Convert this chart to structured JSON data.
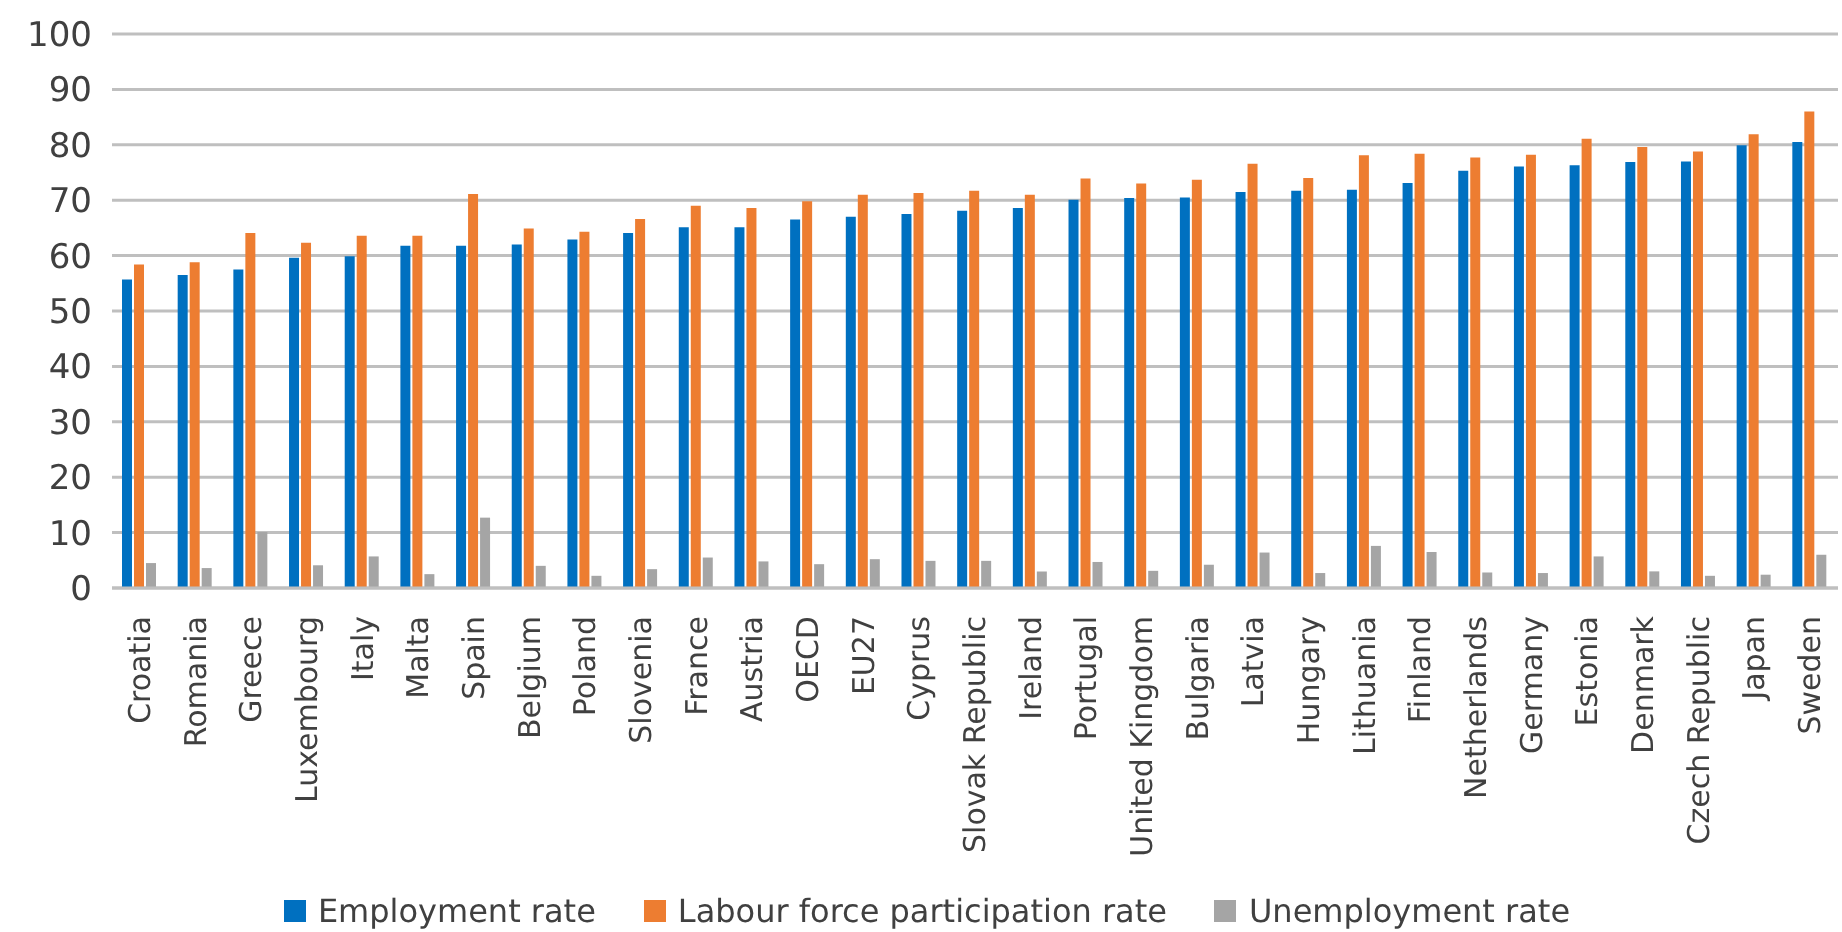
{
  "chart_data": {
    "type": "bar",
    "categories": [
      "Croatia",
      "Romania",
      "Greece",
      "Luxembourg",
      "Italy",
      "Malta",
      "Spain",
      "Belgium",
      "Poland",
      "Slovenia",
      "France",
      "Austria",
      "OECD",
      "EU27",
      "Cyprus",
      "Slovak Republic",
      "Ireland",
      "Portugal",
      "United Kingdom",
      "Bulgaria",
      "Latvia",
      "Hungary",
      "Lithuania",
      "Finland",
      "Netherlands",
      "Germany",
      "Estonia",
      "Denmark",
      "Czech Republic",
      "Japan",
      "Sweden"
    ],
    "series": [
      {
        "name": "Employment rate",
        "color": "#0070c0",
        "values": [
          55.7,
          56.5,
          57.5,
          59.6,
          59.9,
          61.8,
          61.8,
          62.0,
          62.9,
          64.1,
          65.1,
          65.1,
          66.5,
          67.0,
          67.5,
          68.1,
          68.6,
          70.1,
          70.4,
          70.5,
          71.5,
          71.7,
          71.9,
          73.1,
          75.3,
          76.1,
          76.3,
          76.9,
          77.0,
          79.9,
          80.5
        ]
      },
      {
        "name": "Labour force participation rate",
        "color": "#ed7d31",
        "values": [
          58.4,
          58.8,
          64.1,
          62.3,
          63.6,
          63.6,
          71.1,
          64.9,
          64.3,
          66.6,
          69.0,
          68.6,
          69.8,
          71.0,
          71.3,
          71.7,
          71.0,
          73.9,
          73.0,
          73.7,
          76.6,
          74.0,
          78.1,
          78.4,
          77.7,
          78.2,
          81.1,
          79.6,
          78.8,
          81.9,
          86.0
        ]
      },
      {
        "name": "Unemployment rate",
        "color": "#a5a5a5",
        "values": [
          4.5,
          3.6,
          10.1,
          4.1,
          5.7,
          2.5,
          12.7,
          4.0,
          2.2,
          3.4,
          5.5,
          4.8,
          4.3,
          5.2,
          4.9,
          4.9,
          3.0,
          4.7,
          3.1,
          4.2,
          6.4,
          2.7,
          7.6,
          6.5,
          2.8,
          2.7,
          5.7,
          3.0,
          2.2,
          2.4,
          6.0
        ]
      }
    ],
    "ylim": [
      0,
      100
    ],
    "yticks": [
      0,
      10,
      20,
      30,
      40,
      50,
      60,
      70,
      80,
      90,
      100
    ],
    "grid": "y",
    "legend": "bottom"
  }
}
